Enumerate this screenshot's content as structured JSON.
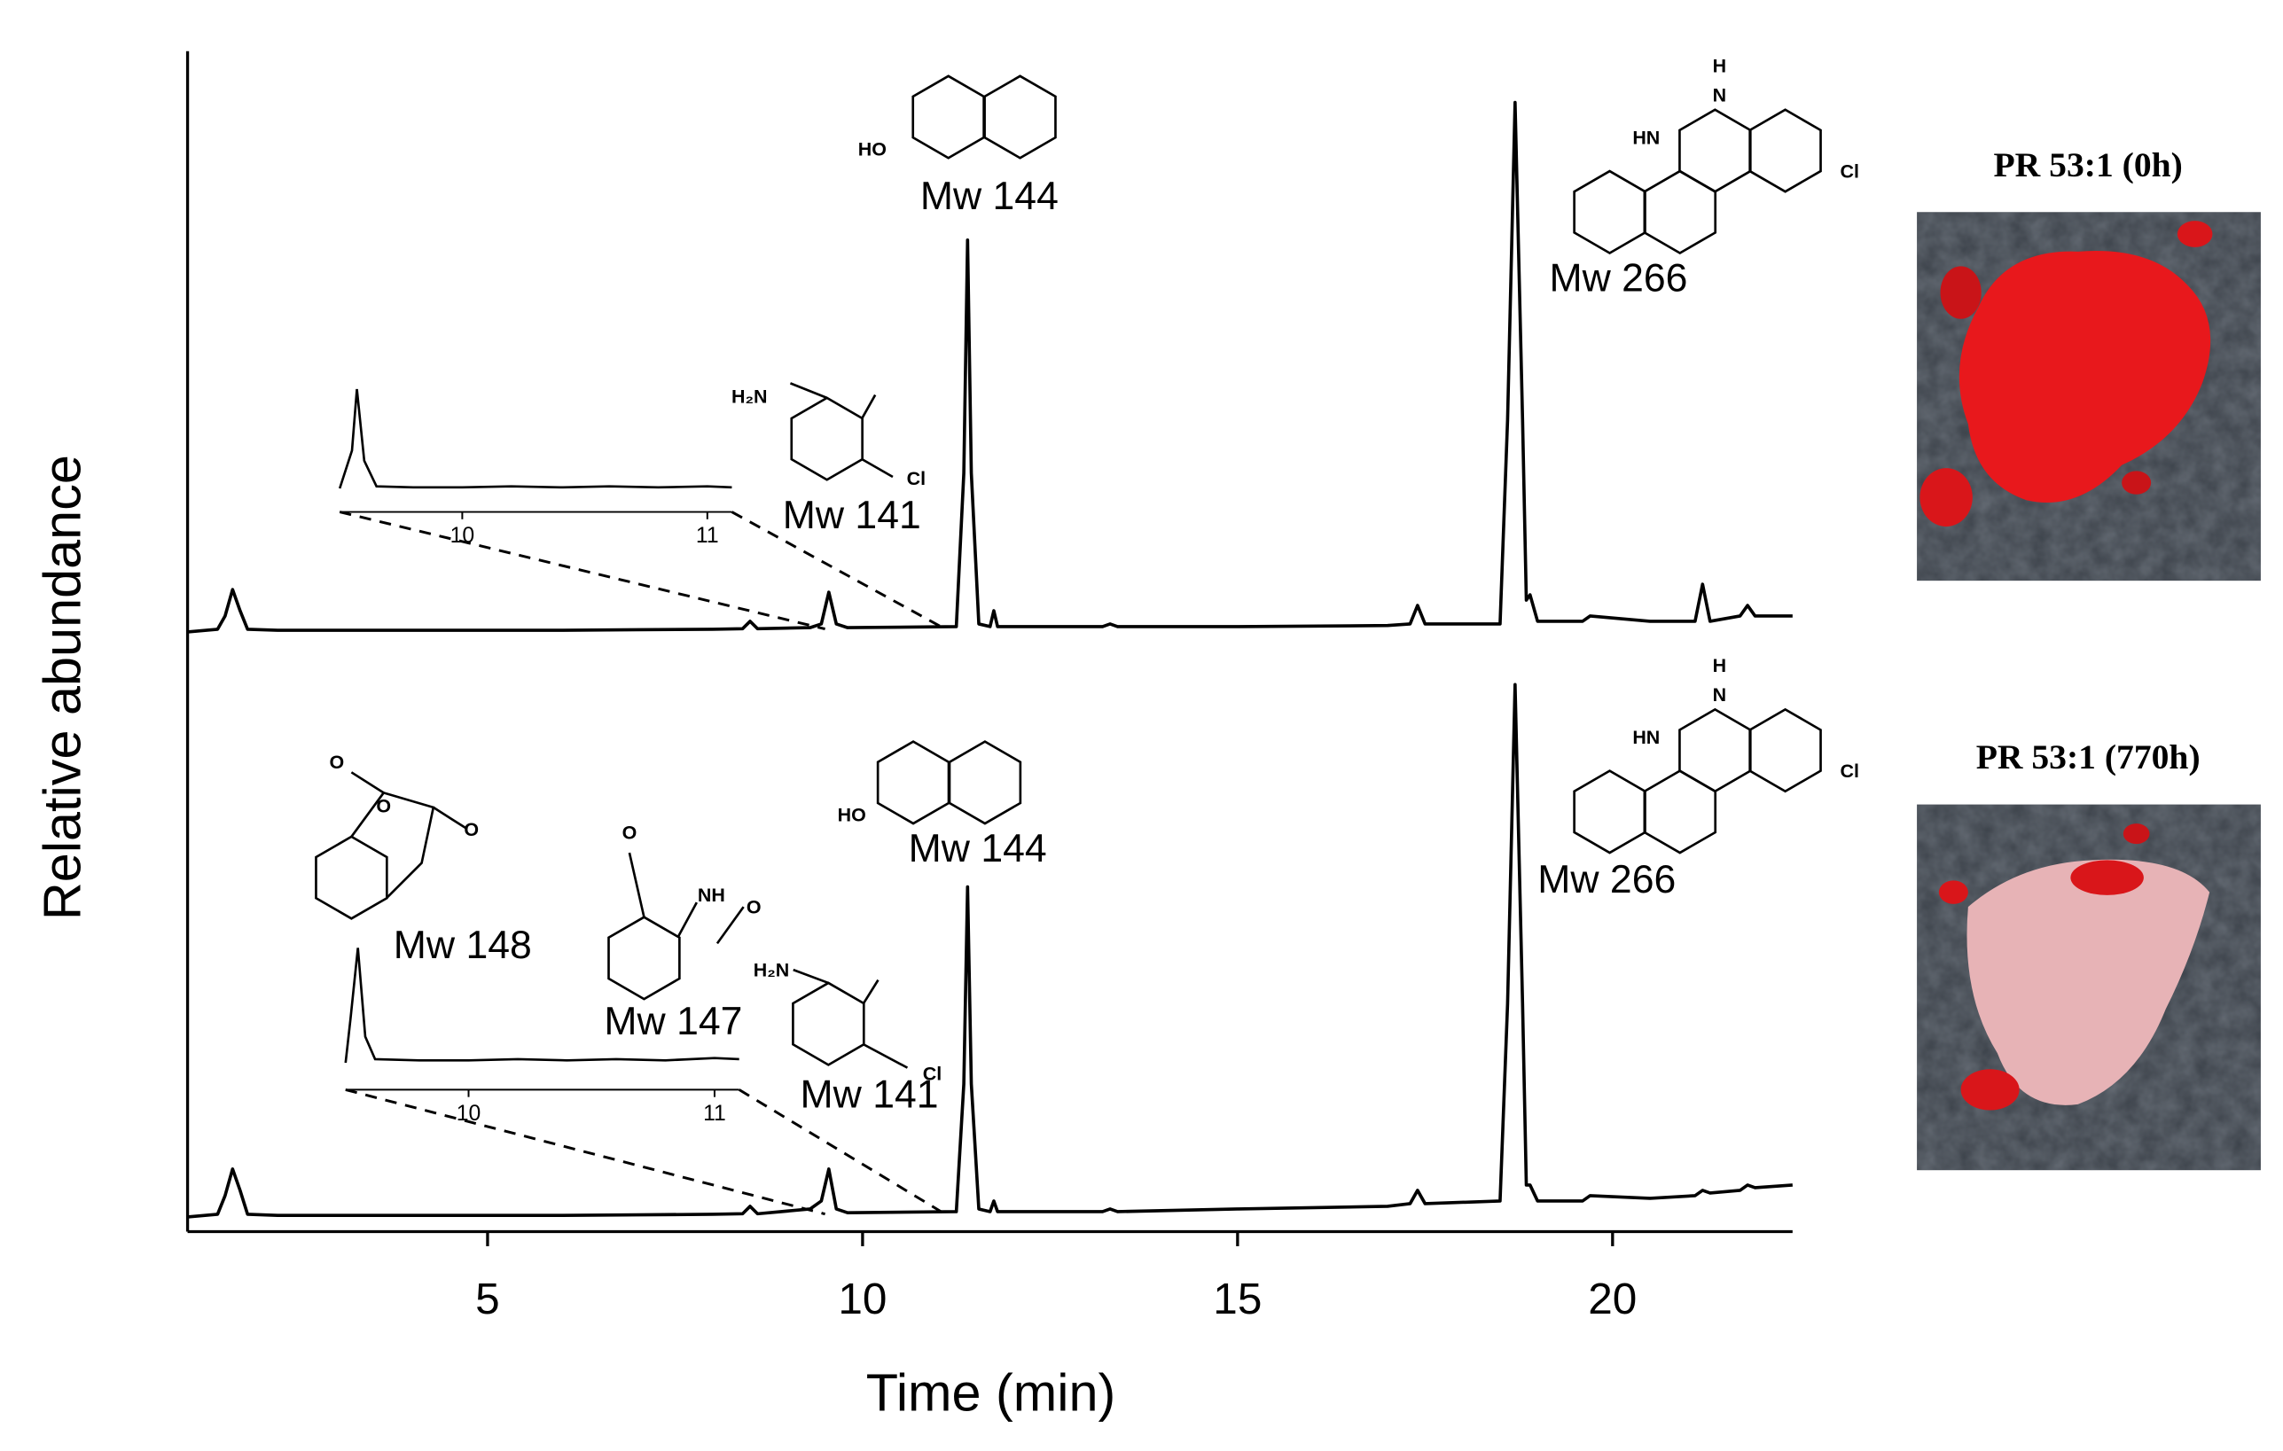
{
  "chart_data": [
    {
      "type": "line",
      "color": "#000000",
      "ylabel": "Relative abundance",
      "xlim": [
        1.0,
        22.4
      ],
      "ylim": [
        0,
        100
      ],
      "x": [
        1.0,
        1.4,
        1.5,
        1.6,
        1.7,
        1.8,
        2.2,
        3,
        4,
        5,
        6,
        7,
        8,
        8.4,
        8.5,
        8.6,
        9.3,
        9.45,
        9.55,
        9.65,
        9.8,
        11.25,
        11.35,
        11.4,
        11.45,
        11.55,
        11.7,
        11.75,
        11.8,
        13.2,
        13.3,
        13.4,
        15,
        17,
        17.3,
        17.4,
        17.5,
        18.5,
        18.6,
        18.7,
        18.8,
        18.85,
        18.9,
        19.0,
        19.6,
        19.7,
        20.5,
        21.1,
        21.2,
        21.3,
        21.7,
        21.8,
        21.9,
        22.4
      ],
      "values": [
        0,
        0.5,
        3,
        8,
        4,
        0.5,
        0.3,
        0.3,
        0.3,
        0.3,
        0.3,
        0.4,
        0.5,
        0.6,
        2,
        0.6,
        0.8,
        1.5,
        7.5,
        1.5,
        0.8,
        1,
        30,
        74,
        30,
        1.5,
        1,
        4,
        1,
        1,
        1.5,
        1,
        1,
        1.2,
        1.5,
        5,
        1.5,
        1.5,
        40,
        100,
        40,
        6,
        7,
        2,
        2,
        3,
        2,
        2,
        9,
        2,
        3,
        5,
        3,
        3
      ],
      "inset": {
        "xlim": [
          9.5,
          11.1
        ],
        "ylim": [
          0,
          100
        ],
        "xticks": [
          10,
          11
        ],
        "x": [
          9.5,
          9.55,
          9.57,
          9.6,
          9.65,
          9.8,
          10,
          10.2,
          10.4,
          10.6,
          10.8,
          11,
          11.1
        ],
        "values": [
          3,
          40,
          100,
          30,
          5,
          4,
          4,
          5,
          4,
          5,
          4,
          5,
          4
        ]
      },
      "annotations": [
        {
          "label": "Mw 144",
          "atoms": [
            "HO"
          ]
        },
        {
          "label": "Mw 141",
          "atoms": [
            "H₂N",
            "Cl"
          ]
        },
        {
          "label": "Mw 266",
          "atoms": [
            "HN",
            "H",
            "N",
            "Cl"
          ]
        }
      ],
      "image_title": "PR 53:1 (0h)"
    },
    {
      "type": "line",
      "color": "#000000",
      "xlabel": "Time (min)",
      "xlim": [
        1.0,
        22.4
      ],
      "ylim": [
        0,
        100
      ],
      "xticks": [
        5,
        10,
        15,
        20
      ],
      "x": [
        1.0,
        1.4,
        1.5,
        1.6,
        1.7,
        1.8,
        2.2,
        3,
        4,
        5,
        6,
        7,
        8,
        8.4,
        8.5,
        8.6,
        9.3,
        9.45,
        9.55,
        9.65,
        9.8,
        11.25,
        11.35,
        11.4,
        11.45,
        11.55,
        11.7,
        11.75,
        11.8,
        13.2,
        13.3,
        13.4,
        15,
        17,
        17.3,
        17.4,
        17.5,
        18.5,
        18.6,
        18.7,
        18.8,
        18.85,
        18.9,
        19.0,
        19.6,
        19.7,
        20.5,
        21.1,
        21.2,
        21.3,
        21.7,
        21.8,
        21.9,
        22.4
      ],
      "values": [
        0,
        0.5,
        4,
        9,
        5,
        0.5,
        0.3,
        0.3,
        0.3,
        0.3,
        0.3,
        0.4,
        0.5,
        0.6,
        2,
        0.6,
        1.5,
        3,
        9,
        1.5,
        0.8,
        1,
        25,
        62,
        25,
        1.5,
        1,
        3,
        1,
        1,
        1.5,
        1,
        1.5,
        2,
        2.5,
        5,
        2.5,
        3,
        40,
        100,
        40,
        6,
        6,
        3,
        3,
        4,
        3.5,
        4,
        5,
        4.5,
        5,
        6,
        5.5,
        6
      ],
      "inset": {
        "xlim": [
          9.5,
          11.1
        ],
        "ylim": [
          0,
          100
        ],
        "xticks": [
          10,
          11
        ],
        "x": [
          9.5,
          9.52,
          9.55,
          9.58,
          9.62,
          9.8,
          10,
          10.2,
          10.4,
          10.6,
          10.8,
          11,
          11.1
        ],
        "values": [
          3,
          40,
          100,
          25,
          6,
          5,
          5,
          6,
          5,
          6,
          5,
          7,
          6
        ]
      },
      "annotations": [
        {
          "label": "Mw 148",
          "atoms": [
            "O",
            "O",
            "O"
          ]
        },
        {
          "label": "Mw 147",
          "atoms": [
            "O",
            "NH",
            "O"
          ]
        },
        {
          "label": "Mw 144",
          "atoms": [
            "HO"
          ]
        },
        {
          "label": "Mw 141",
          "atoms": [
            "H₂N",
            "Cl"
          ]
        },
        {
          "label": "Mw 266",
          "atoms": [
            "HN",
            "H",
            "N",
            "Cl"
          ]
        }
      ],
      "image_title": "PR 53:1 (770h)"
    }
  ]
}
